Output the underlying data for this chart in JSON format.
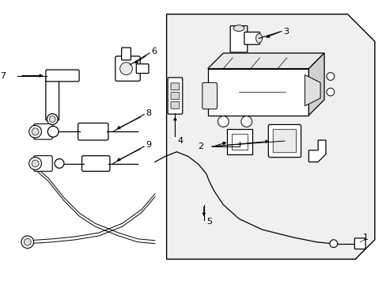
{
  "bg_color": "#ffffff",
  "line_color": "#000000",
  "panel_fill": "#f2f2f2",
  "figsize": [
    4.89,
    3.6
  ],
  "dpi": 100
}
